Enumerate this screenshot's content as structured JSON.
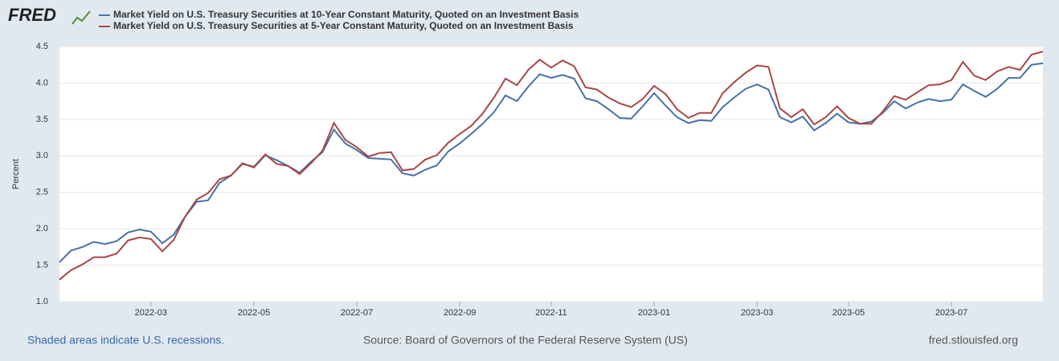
{
  "brand": "FRED",
  "footer": {
    "left": "Shaded areas indicate U.S. recessions.",
    "center": "Source: Board of Governors of the Federal Reserve System (US)",
    "right": "fred.stlouisfed.org"
  },
  "chart_data": {
    "type": "line",
    "ylabel": "Percent",
    "ylim": [
      1,
      4.5
    ],
    "yticks": [
      {
        "value": 1,
        "label": "1.0"
      },
      1.5,
      {
        "value": 2,
        "label": "2.0"
      },
      2.5,
      {
        "value": 3,
        "label": "3.0"
      },
      3.5,
      {
        "value": 4,
        "label": "4.0"
      },
      4.5
    ],
    "grid": true,
    "legend": "top-left",
    "categories": [
      null,
      null,
      null,
      null,
      null,
      null,
      null,
      null,
      "2022-03",
      null,
      null,
      null,
      null,
      null,
      null,
      null,
      null,
      "2022-05",
      null,
      null,
      null,
      null,
      null,
      null,
      null,
      null,
      "2022-07",
      null,
      null,
      null,
      null,
      null,
      null,
      null,
      null,
      "2022-09",
      null,
      null,
      null,
      null,
      null,
      null,
      null,
      "2022-11",
      null,
      null,
      null,
      null,
      null,
      null,
      null,
      null,
      "2023-01",
      null,
      null,
      null,
      null,
      null,
      null,
      null,
      null,
      "2023-03",
      null,
      null,
      null,
      null,
      null,
      null,
      null,
      "2023-05",
      null,
      null,
      null,
      null,
      null,
      null,
      null,
      null,
      "2023-07",
      null,
      null,
      null,
      null,
      null,
      null,
      null,
      null
    ],
    "series": [
      {
        "name": "Market Yield on U.S. Treasury Securities at 10-Year Constant Maturity, Quoted on an Investment Basis",
        "color": "#4572a7",
        "values": [
          1.54,
          1.7,
          1.75,
          1.82,
          1.79,
          1.83,
          1.95,
          1.99,
          1.96,
          1.8,
          1.92,
          2.17,
          2.37,
          2.39,
          2.63,
          2.73,
          2.9,
          2.84,
          3.01,
          2.94,
          2.86,
          2.77,
          2.92,
          3.05,
          3.36,
          3.17,
          3.08,
          2.97,
          2.96,
          2.95,
          2.76,
          2.73,
          2.81,
          2.87,
          3.06,
          3.17,
          3.3,
          3.44,
          3.6,
          3.83,
          3.75,
          3.95,
          4.12,
          4.07,
          4.11,
          4.06,
          3.79,
          3.75,
          3.64,
          3.52,
          3.51,
          3.68,
          3.86,
          3.69,
          3.53,
          3.45,
          3.49,
          3.48,
          3.67,
          3.8,
          3.92,
          3.98,
          3.91,
          3.53,
          3.46,
          3.54,
          3.35,
          3.45,
          3.58,
          3.46,
          3.44,
          3.47,
          3.59,
          3.75,
          3.65,
          3.73,
          3.78,
          3.75,
          3.77,
          3.98,
          3.89,
          3.81,
          3.92,
          4.07,
          4.07,
          4.25,
          4.27
        ]
      },
      {
        "name": "Market Yield on U.S. Treasury Securities at 5-Year Constant Maturity, Quoted on an Investment Basis",
        "color": "#aa4643",
        "values": [
          1.3,
          1.43,
          1.51,
          1.61,
          1.61,
          1.66,
          1.84,
          1.88,
          1.86,
          1.69,
          1.85,
          2.17,
          2.4,
          2.49,
          2.68,
          2.73,
          2.89,
          2.85,
          3.02,
          2.89,
          2.86,
          2.75,
          2.9,
          3.07,
          3.45,
          3.22,
          3.12,
          2.99,
          3.04,
          3.05,
          2.8,
          2.82,
          2.95,
          3.01,
          3.18,
          3.3,
          3.41,
          3.58,
          3.8,
          4.06,
          3.97,
          4.18,
          4.32,
          4.21,
          4.31,
          4.23,
          3.94,
          3.91,
          3.8,
          3.72,
          3.67,
          3.78,
          3.96,
          3.85,
          3.64,
          3.52,
          3.59,
          3.59,
          3.86,
          4.01,
          4.14,
          4.24,
          4.22,
          3.65,
          3.53,
          3.64,
          3.43,
          3.53,
          3.68,
          3.52,
          3.44,
          3.44,
          3.61,
          3.82,
          3.77,
          3.87,
          3.97,
          3.98,
          4.04,
          4.29,
          4.1,
          4.04,
          4.16,
          4.22,
          4.18,
          4.39,
          4.43
        ]
      }
    ]
  }
}
